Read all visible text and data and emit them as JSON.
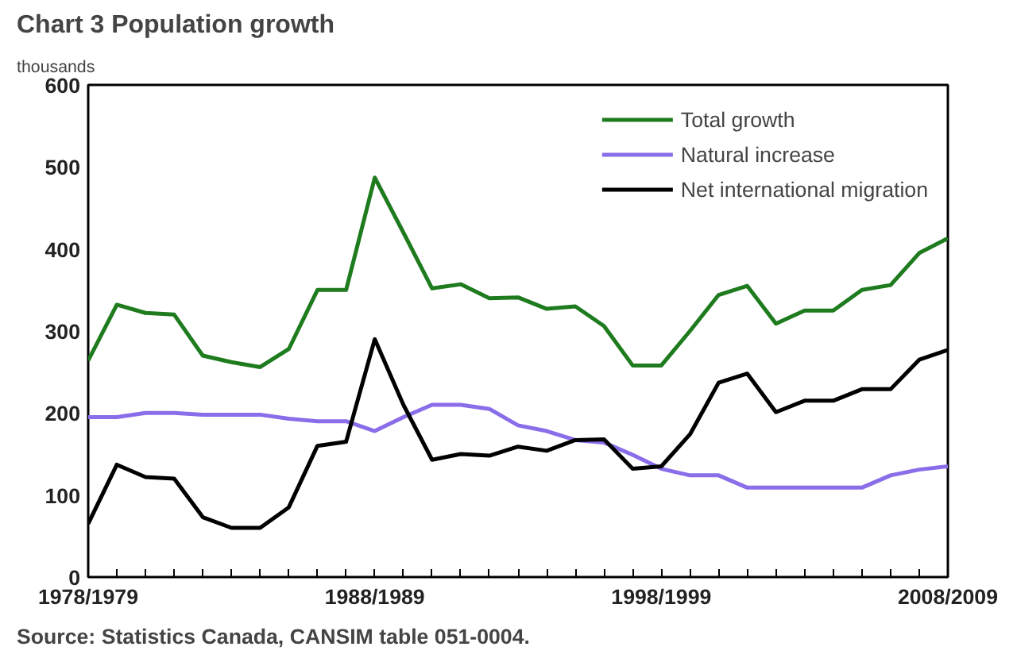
{
  "chart_data": {
    "type": "line",
    "title": "Chart 3 Population growth",
    "ylabel": "thousands",
    "categories": [
      "1978/1979",
      null,
      null,
      null,
      null,
      null,
      null,
      null,
      null,
      null,
      "1988/1989",
      null,
      null,
      null,
      null,
      null,
      null,
      null,
      null,
      null,
      "1998/1999",
      null,
      null,
      null,
      null,
      null,
      null,
      null,
      null,
      null,
      "2008/2009"
    ],
    "series": [
      {
        "name": "Total growth",
        "color": "#1e7b1e",
        "values": [
          264,
          332,
          322,
          320,
          270,
          262,
          256,
          278,
          350,
          350,
          487,
          420,
          352,
          357,
          340,
          341,
          327,
          330,
          306,
          258,
          258,
          300,
          344,
          355,
          309,
          325,
          325,
          350,
          356,
          395,
          413
        ]
      },
      {
        "name": "Natural increase",
        "color": "#8a6de8",
        "values": [
          195,
          195,
          200,
          200,
          198,
          198,
          198,
          193,
          190,
          190,
          178,
          195,
          210,
          210,
          205,
          185,
          178,
          167,
          164,
          149,
          132,
          124,
          124,
          109,
          109,
          109,
          109,
          109,
          124,
          131,
          135
        ]
      },
      {
        "name": "Net international migration",
        "color": "#000000",
        "values": [
          65,
          137,
          122,
          120,
          73,
          60,
          60,
          85,
          160,
          165,
          290,
          210,
          143,
          150,
          148,
          159,
          154,
          167,
          168,
          132,
          135,
          174,
          237,
          248,
          201,
          215,
          215,
          229,
          229,
          265,
          277
        ]
      }
    ],
    "ylim": [
      0,
      600
    ],
    "yticks": [
      0,
      100,
      200,
      300,
      400,
      500,
      600
    ],
    "grid": false,
    "legend": "top right",
    "line_style": "solid",
    "annotations": [
      "Source: Statistics Canada, CANSIM table 051-0004."
    ]
  }
}
